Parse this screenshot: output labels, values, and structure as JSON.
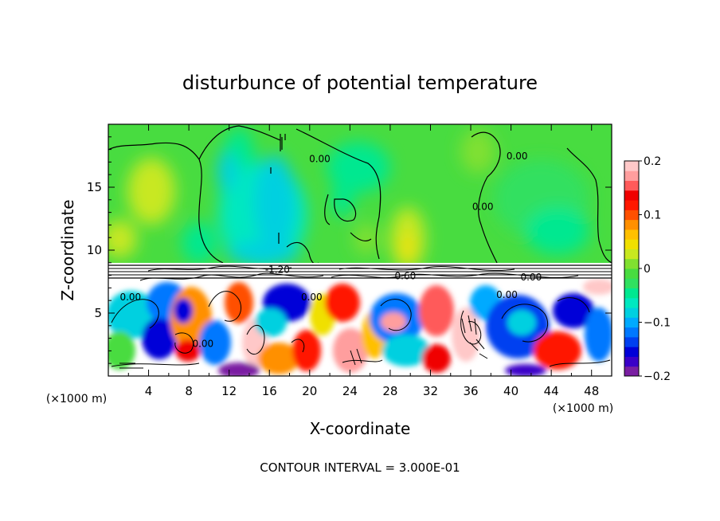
{
  "chart_data": {
    "type": "heatmap",
    "title": "disturbunce of potential temperature",
    "xlabel": "X-coordinate",
    "ylabel": "Z-coordinate",
    "x_unit": "(×1000 m)",
    "y_unit": "(×1000 m)",
    "footer": "CONTOUR INTERVAL = 3.000E-01",
    "xlim": [
      0,
      50
    ],
    "ylim": [
      0,
      20
    ],
    "x_ticks": [
      4,
      8,
      12,
      16,
      20,
      24,
      28,
      32,
      36,
      40,
      44,
      48
    ],
    "y_ticks": [
      5,
      10,
      15
    ],
    "colorbar": {
      "range": [
        -0.2,
        0.2
      ],
      "tick_values": [
        0.2,
        0.1,
        0,
        -0.1,
        -0.2
      ],
      "tick_labels": [
        "0.2",
        "0.1",
        "0",
        "−0.1",
        "−0.2"
      ],
      "colors": [
        "#7a1fa2",
        "#3a00c8",
        "#0000d8",
        "#0040f0",
        "#0078ff",
        "#00aaff",
        "#00d0e0",
        "#00e8c0",
        "#00e890",
        "#30e060",
        "#48dc40",
        "#80e030",
        "#c8e820",
        "#f0e000",
        "#ffc000",
        "#ff9000",
        "#ff5000",
        "#ff1800",
        "#f00000",
        "#ff5a5a",
        "#ff9e9e",
        "#ffc8c8"
      ]
    },
    "contour_interval": 0.3,
    "contour_labels": [
      {
        "text": "0.00",
        "x": 21.0,
        "z": 17.0
      },
      {
        "text": "0.00",
        "x": 37.2,
        "z": 13.2
      },
      {
        "text": "0.00",
        "x": 40.6,
        "z": 17.2
      },
      {
        "text": "-1.20",
        "x": 16.8,
        "z": 8.2
      },
      {
        "text": "0.60",
        "x": 29.5,
        "z": 7.7
      },
      {
        "text": "0.00",
        "x": 42.0,
        "z": 7.6
      },
      {
        "text": "0.00",
        "x": 39.6,
        "z": 6.2
      },
      {
        "text": "0.00",
        "x": 2.2,
        "z": 6.0
      },
      {
        "text": "0.00",
        "x": 9.4,
        "z": 2.3
      },
      {
        "text": "0.00",
        "x": 20.2,
        "z": 6.0
      }
    ]
  }
}
